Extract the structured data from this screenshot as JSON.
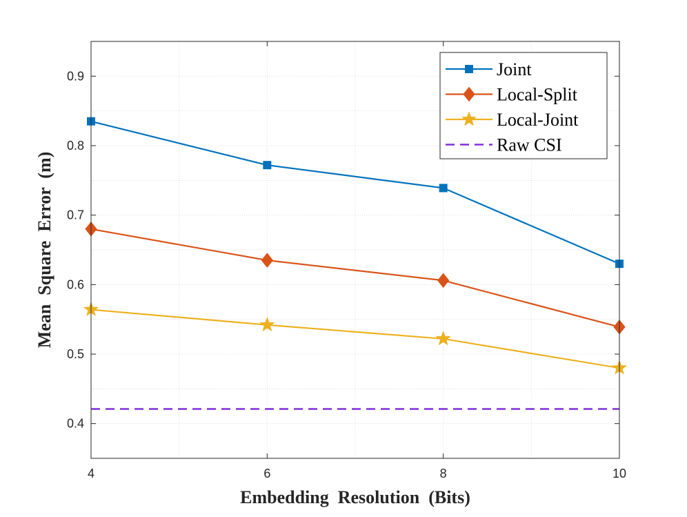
{
  "chart_data": {
    "type": "line",
    "title": "",
    "xlabel": "Embedding  Resolution  (Bits)",
    "ylabel": "Mean  Square  Error  (m)",
    "x": [
      4,
      6,
      8,
      10
    ],
    "xlim": [
      4,
      10
    ],
    "ylim": [
      0.35,
      0.95
    ],
    "xticks": [
      4,
      6,
      8,
      10
    ],
    "xtick_labels": [
      "4",
      "6",
      "8",
      "10"
    ],
    "yticks": [
      0.4,
      0.5,
      0.6,
      0.7,
      0.8,
      0.9
    ],
    "ytick_labels": [
      "0.4",
      "0.5",
      "0.6",
      "0.7",
      "0.8",
      "0.9"
    ],
    "grid": true,
    "legend_position": "top-right",
    "series": [
      {
        "name": "Joint",
        "values": [
          0.835,
          0.772,
          0.739,
          0.63
        ],
        "color": "#0072BD",
        "marker": "square",
        "line": "solid"
      },
      {
        "name": "Local-Split",
        "values": [
          0.68,
          0.635,
          0.606,
          0.539
        ],
        "color": "#D95319",
        "marker": "diamond",
        "line": "solid"
      },
      {
        "name": "Local-Joint",
        "values": [
          0.564,
          0.542,
          0.522,
          0.48
        ],
        "color": "#EDB120",
        "marker": "star",
        "line": "solid"
      },
      {
        "name": "Raw CSI",
        "values": [
          0.421,
          0.421,
          0.421,
          0.421
        ],
        "color": "#7E2FDA",
        "marker": "none",
        "line": "dashed"
      }
    ]
  }
}
